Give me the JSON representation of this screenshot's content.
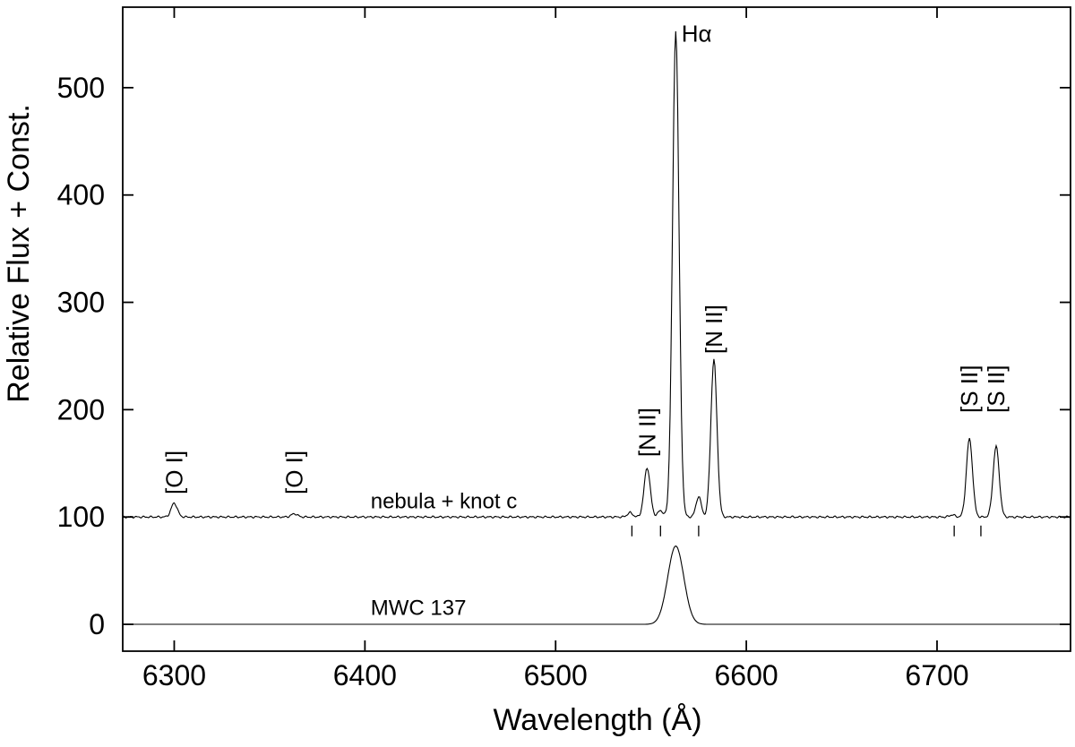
{
  "chart_data": {
    "type": "line",
    "title": "",
    "xlabel": "Wavelength (Å)",
    "ylabel": "Relative Flux + Const.",
    "xlim": [
      6273,
      6770
    ],
    "ylim": [
      -25,
      575
    ],
    "x_ticks": [
      6300,
      6400,
      6500,
      6600,
      6700
    ],
    "y_ticks": [
      0,
      100,
      200,
      300,
      400,
      500
    ],
    "grid": false,
    "legend": "none",
    "series": [
      {
        "name": "nebula + knot c",
        "baseline": 100,
        "peaks": [
          {
            "x": 6300,
            "height": 13,
            "width": 1.6
          },
          {
            "x": 6363,
            "height": 3,
            "width": 1.6
          },
          {
            "x": 6539,
            "height": 4,
            "width": 1.4
          },
          {
            "x": 6548,
            "height": 46,
            "width": 1.6
          },
          {
            "x": 6555,
            "height": 6,
            "width": 1.4
          },
          {
            "x": 6563,
            "height": 453,
            "width": 1.7
          },
          {
            "x": 6575,
            "height": 19,
            "width": 1.4
          },
          {
            "x": 6583,
            "height": 147,
            "width": 1.6
          },
          {
            "x": 6708,
            "height": 2,
            "width": 1.4
          },
          {
            "x": 6717,
            "height": 73,
            "width": 1.6
          },
          {
            "x": 6731,
            "height": 66,
            "width": 1.6
          }
        ]
      },
      {
        "name": "MWC 137",
        "baseline": 0,
        "peaks": [
          {
            "x": 6563,
            "height": 73,
            "width": 4.2
          }
        ]
      }
    ],
    "line_labels": [
      {
        "text": "nebula + knot c",
        "x": 6403,
        "y": 108
      },
      {
        "text": "MWC 137",
        "x": 6403,
        "y": 9
      }
    ],
    "annotations": [
      {
        "text": "Hα",
        "x": 6566,
        "y": 543,
        "rotate": false
      },
      {
        "text": "[O I]",
        "x": 6300,
        "y": 121,
        "rotate": true
      },
      {
        "text": "[O I]",
        "x": 6363,
        "y": 121,
        "rotate": true
      },
      {
        "text": "[N II]",
        "x": 6548,
        "y": 156,
        "rotate": true
      },
      {
        "text": "[N II]",
        "x": 6583,
        "y": 252,
        "rotate": true
      },
      {
        "text": "[S II]",
        "x": 6717,
        "y": 197,
        "rotate": true
      },
      {
        "text": "[S II]",
        "x": 6731,
        "y": 197,
        "rotate": true
      }
    ],
    "marker_ticks": [
      6540,
      6555,
      6575,
      6709,
      6723
    ]
  }
}
